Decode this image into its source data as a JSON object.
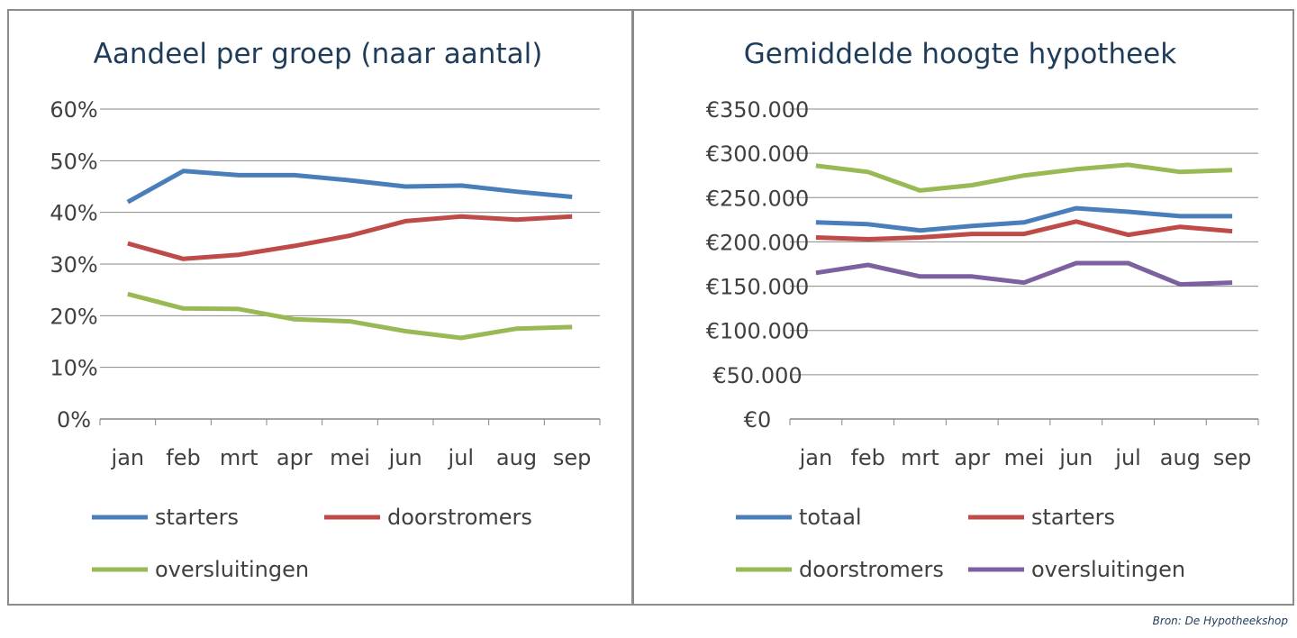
{
  "source": "Bron: De Hypotheekshop",
  "chart_data": [
    {
      "type": "line",
      "title": "Aandeel per groep (naar aantal)",
      "categories": [
        "jan",
        "feb",
        "mrt",
        "apr",
        "mei",
        "jun",
        "jul",
        "aug",
        "sep"
      ],
      "ylim": [
        0,
        60
      ],
      "yticks": [
        0,
        10,
        20,
        30,
        40,
        50,
        60
      ],
      "ytick_labels": [
        "0%",
        "10%",
        "20%",
        "30%",
        "40%",
        "50%",
        "60%"
      ],
      "grid": true,
      "legend": "bottom",
      "series": [
        {
          "name": "starters",
          "color": "#4a7ebb",
          "values": [
            42,
            48,
            47.2,
            47.2,
            46.2,
            45,
            45.2,
            44,
            43
          ]
        },
        {
          "name": "doorstromers",
          "color": "#be4b48",
          "values": [
            34,
            31,
            31.8,
            33.5,
            35.5,
            38.3,
            39.2,
            38.6,
            39.2
          ]
        },
        {
          "name": "oversluitingen",
          "color": "#98b954",
          "values": [
            24.2,
            21.4,
            21.3,
            19.3,
            18.9,
            17,
            15.7,
            17.5,
            17.8
          ]
        }
      ]
    },
    {
      "type": "line",
      "title": "Gemiddelde hoogte hypotheek",
      "categories": [
        "jan",
        "feb",
        "mrt",
        "apr",
        "mei",
        "jun",
        "jul",
        "aug",
        "sep"
      ],
      "ylim": [
        0,
        350000
      ],
      "yticks": [
        0,
        50000,
        100000,
        150000,
        200000,
        250000,
        300000,
        350000
      ],
      "ytick_labels": [
        "€0",
        "€50.000",
        "€100.000",
        "€150.000",
        "€200.000",
        "€250.000",
        "€300.000",
        "€350.000"
      ],
      "grid": true,
      "legend": "bottom",
      "series": [
        {
          "name": "totaal",
          "color": "#4a7ebb",
          "values": [
            222000,
            220000,
            213000,
            218000,
            222000,
            238000,
            234000,
            229000,
            229000
          ]
        },
        {
          "name": "starters",
          "color": "#be4b48",
          "values": [
            205000,
            203000,
            205000,
            209000,
            209000,
            223000,
            208000,
            217000,
            212000
          ]
        },
        {
          "name": "doorstromers",
          "color": "#98b954",
          "values": [
            286000,
            279000,
            258000,
            264000,
            275000,
            282000,
            287000,
            279000,
            281000
          ]
        },
        {
          "name": "oversluitingen",
          "color": "#7d60a0",
          "values": [
            165000,
            174000,
            161000,
            161000,
            154000,
            176000,
            176000,
            152000,
            154000
          ]
        }
      ]
    }
  ]
}
